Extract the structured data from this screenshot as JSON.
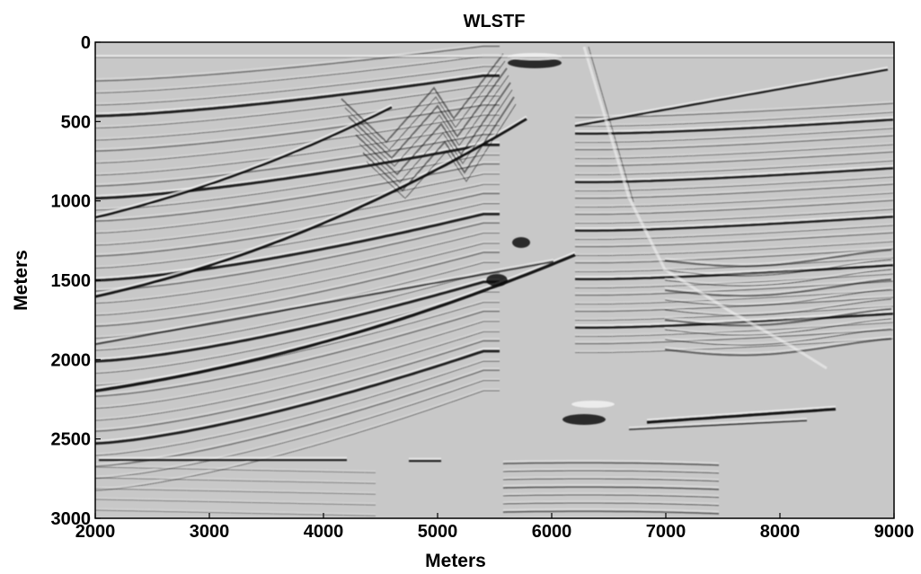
{
  "figure": {
    "title": "WLSTF",
    "xlabel": "Meters",
    "ylabel": "Meters",
    "x_ticks": [
      "2000",
      "3000",
      "4000",
      "5000",
      "6000",
      "7000",
      "8000",
      "9000"
    ],
    "y_ticks": [
      "0",
      "500",
      "1000",
      "1500",
      "2000",
      "2500",
      "3000"
    ],
    "x_range": [
      2000,
      9000
    ],
    "y_range": [
      0,
      3000
    ],
    "y_direction": "down",
    "colormap": "gray",
    "background_color": "#c8c8c8",
    "reflector_dark_color": "#111111",
    "reflector_light_color": "#f2f2f2"
  }
}
